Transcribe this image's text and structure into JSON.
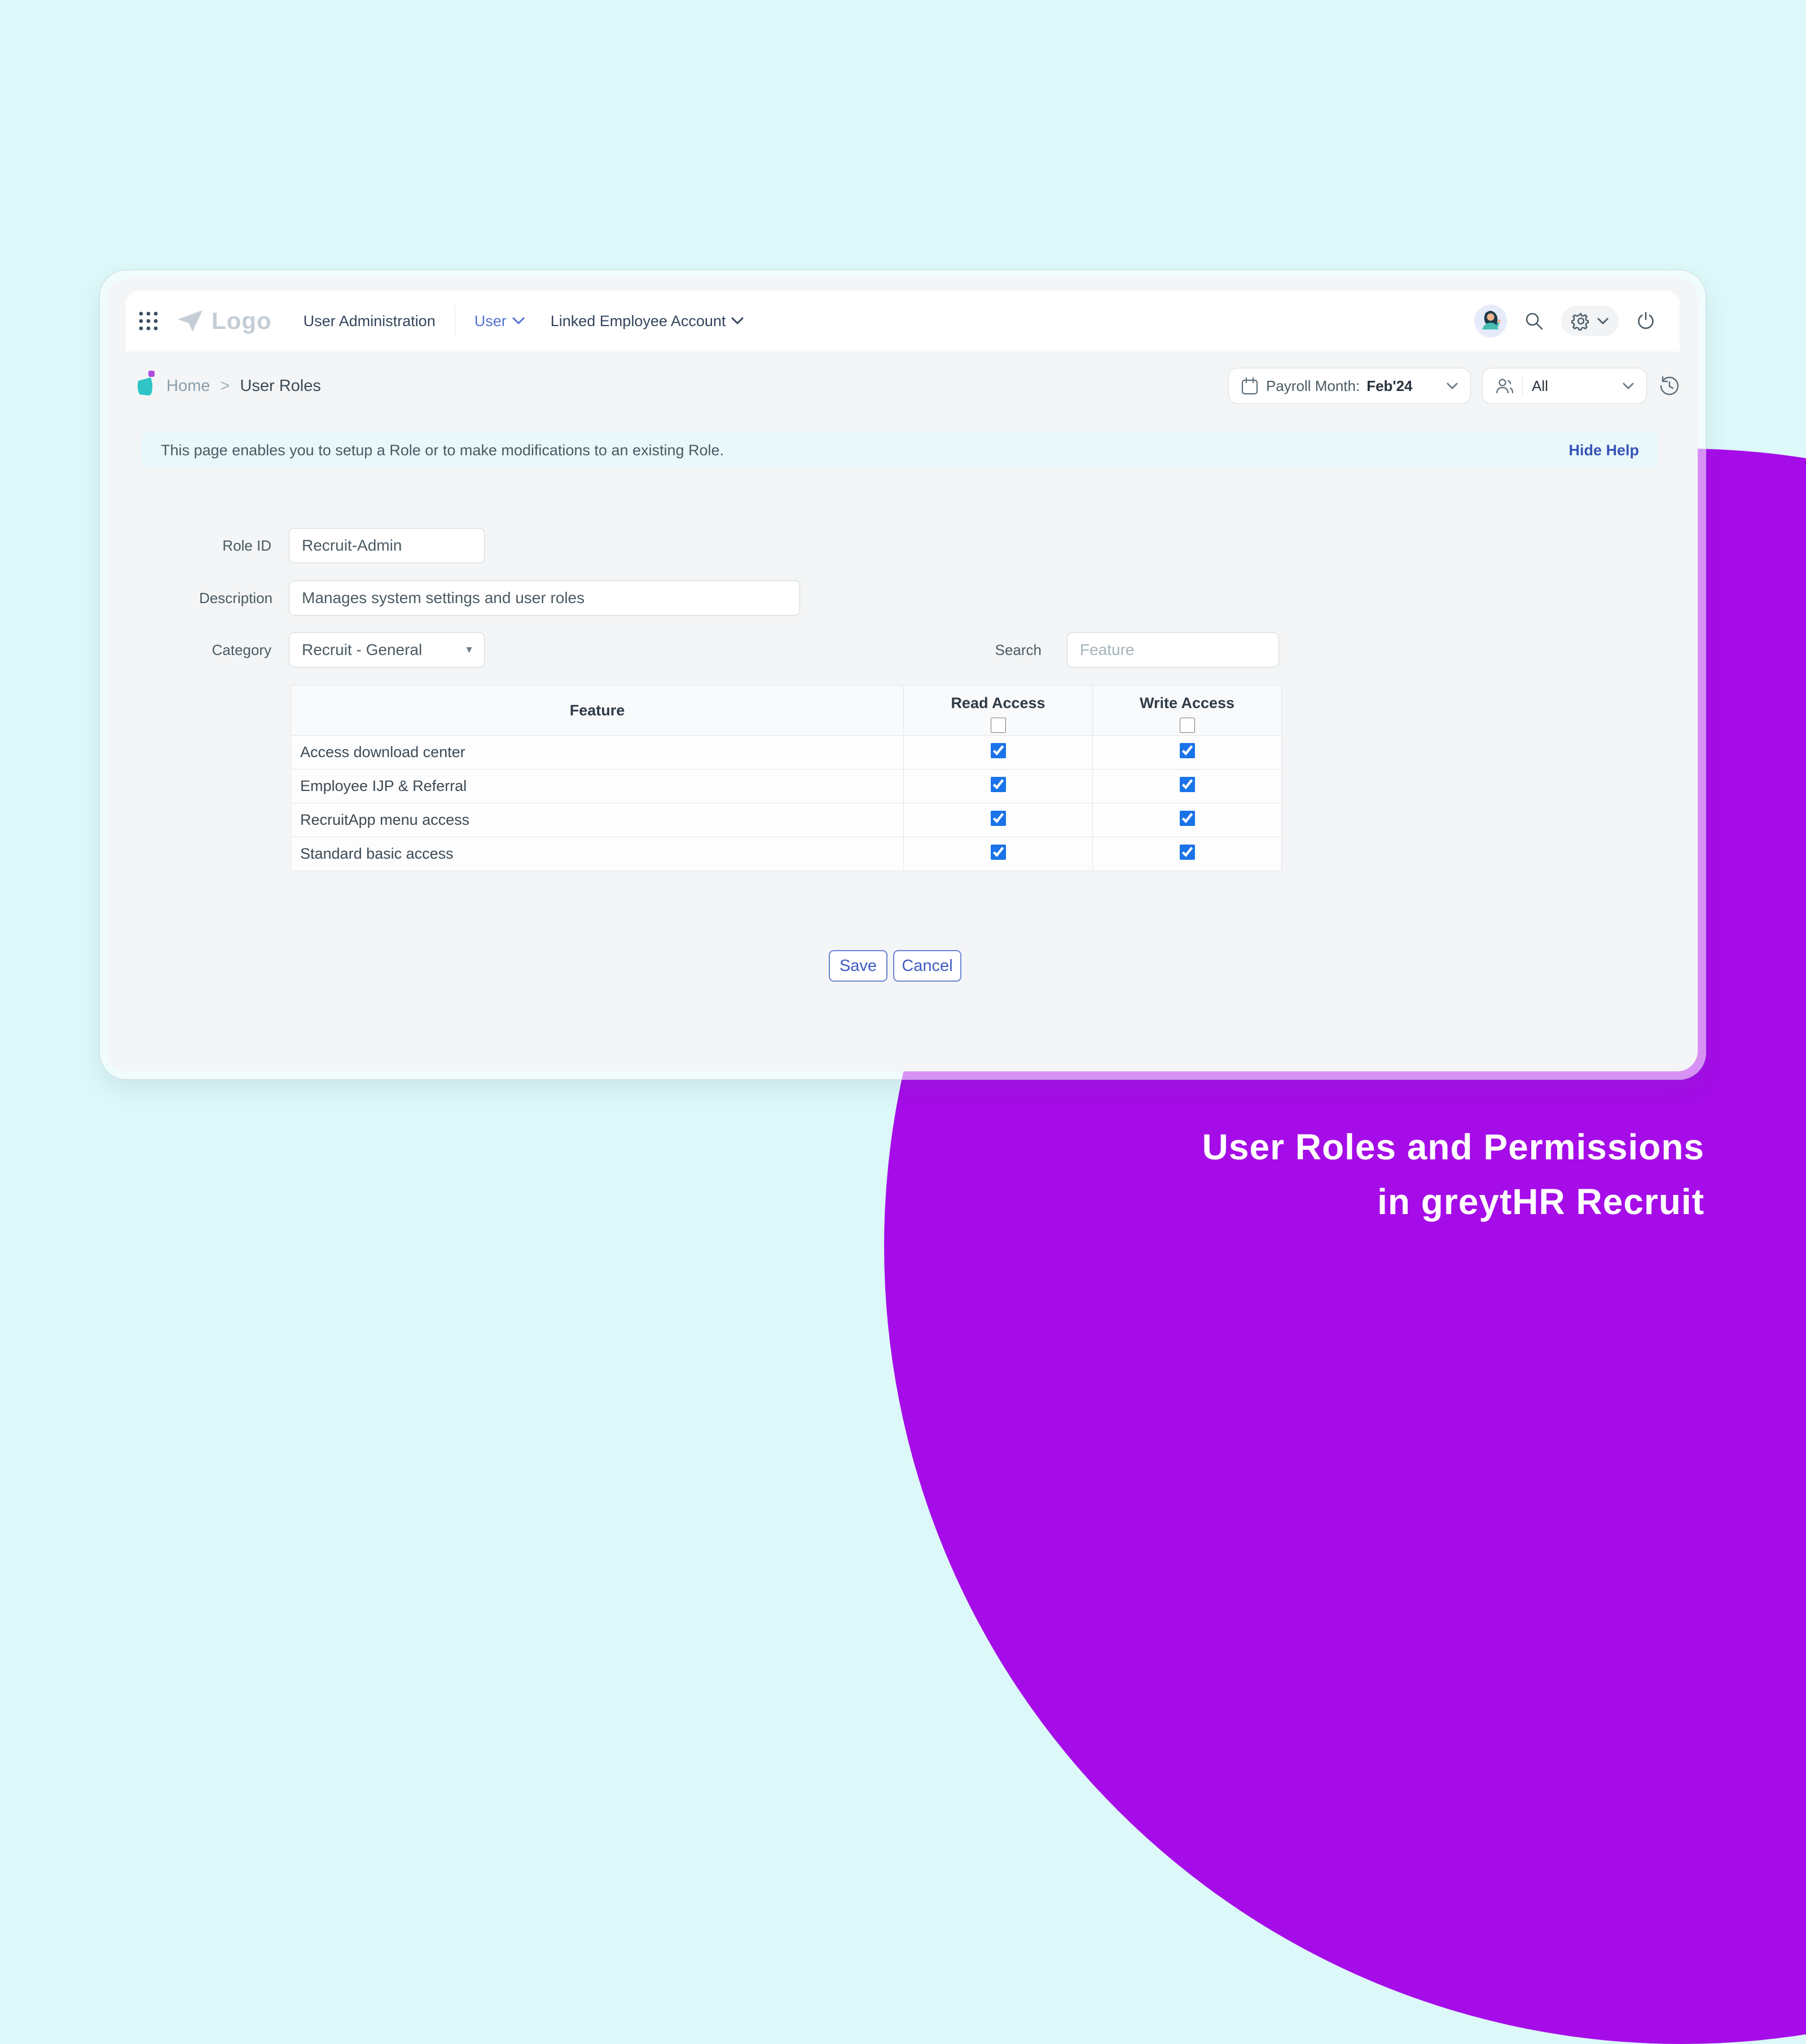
{
  "hero": {
    "title_line1": "User Roles and Permissions",
    "title_line2": "in greytHR Recruit"
  },
  "navbar": {
    "logo_text": "Logo",
    "items": [
      {
        "label": "User Administration"
      },
      {
        "label": "User"
      },
      {
        "label": "Linked Employee Account"
      }
    ],
    "icons": [
      "apps-grid-icon",
      "paper-plane-logo",
      "avatar",
      "search-icon",
      "gear-icon",
      "power-icon"
    ]
  },
  "breadcrumb": {
    "home": "Home",
    "separator": ">",
    "current": "User Roles"
  },
  "filters": {
    "payroll_label": "Payroll Month:",
    "payroll_value": "Feb'24",
    "employee_filter_value": "All"
  },
  "help": {
    "text": "This page enables you to setup a Role or to make modifications to an existing Role.",
    "hide_label": "Hide Help"
  },
  "form": {
    "role_id": {
      "label": "Role ID",
      "value": "Recruit-Admin"
    },
    "description": {
      "label": "Description",
      "value": "Manages system settings and user roles"
    },
    "category": {
      "label": "Category",
      "value": "Recruit - General"
    },
    "search": {
      "label": "Search",
      "placeholder": "Feature"
    }
  },
  "table": {
    "headers": {
      "feature": "Feature",
      "read": "Read Access",
      "write": "Write Access"
    },
    "header_checkboxes": {
      "read": false,
      "write": false
    },
    "rows": [
      {
        "feature": "Access download center",
        "read": true,
        "write": true
      },
      {
        "feature": "Employee IJP & Referral",
        "read": true,
        "write": true
      },
      {
        "feature": "RecruitApp menu access",
        "read": true,
        "write": true
      },
      {
        "feature": "Standard basic access",
        "read": true,
        "write": true
      }
    ]
  },
  "actions": {
    "save": "Save",
    "cancel": "Cancel"
  },
  "colors": {
    "background_cyan": "#ddf8f9",
    "accent_purple": "#a60ce8",
    "accent_blue": "#3753b8",
    "checkbox_blue": "#1a73e8",
    "logo_teal": "#2fc5c8"
  }
}
